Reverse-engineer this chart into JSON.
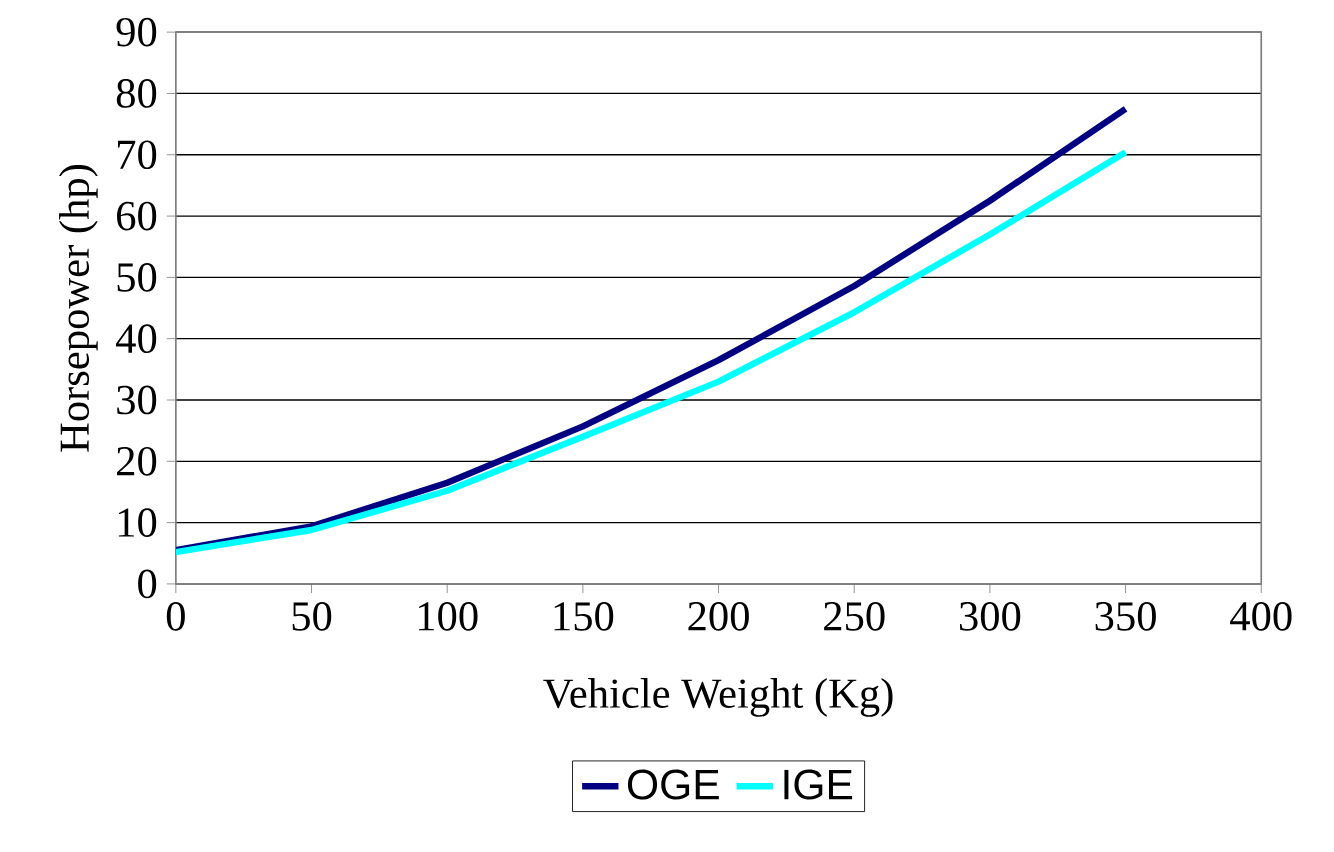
{
  "chart_data": {
    "type": "line",
    "xlabel": "Vehicle Weight (Kg)",
    "ylabel": "Horsepower (hp)",
    "x": [
      0,
      50,
      100,
      150,
      200,
      250,
      300,
      350
    ],
    "series": [
      {
        "name": "OGE",
        "color": "#000080",
        "values": [
          5.5,
          9.4,
          16.5,
          25.7,
          36.5,
          48.6,
          62.5,
          77.5
        ]
      },
      {
        "name": "IGE",
        "color": "#00ffff",
        "values": [
          5.2,
          8.8,
          15.2,
          24,
          33,
          44.3,
          57,
          70.4
        ]
      }
    ],
    "xlim": [
      0,
      400
    ],
    "xticks": [
      0,
      50,
      100,
      150,
      200,
      250,
      300,
      350,
      400
    ],
    "ylim": [
      0,
      90
    ],
    "yticks": [
      0,
      10,
      20,
      30,
      40,
      50,
      60,
      70,
      80,
      90
    ],
    "grid": "y",
    "legend": "bottom",
    "marker": "none",
    "line_style": "solid"
  }
}
